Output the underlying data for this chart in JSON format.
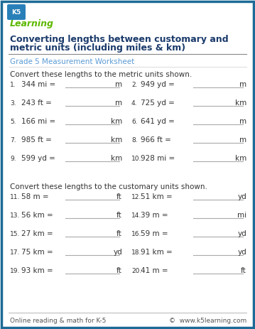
{
  "title_line1": "Converting lengths between customary and",
  "title_line2": "metric units (including miles & km)",
  "subtitle": "Grade 5 Measurement Worksheet",
  "section1_header": "Convert these lengths to the metric units shown.",
  "section2_header": "Convert these lengths to the customary units shown.",
  "problems_section1": [
    {
      "num": "1.",
      "expr": "344 mi =",
      "unit": "m"
    },
    {
      "num": "2.",
      "expr": "949 yd =",
      "unit": "m"
    },
    {
      "num": "3.",
      "expr": "243 ft =",
      "unit": "m"
    },
    {
      "num": "4.",
      "expr": "725 yd =",
      "unit": "km"
    },
    {
      "num": "5.",
      "expr": "166 mi =",
      "unit": "km"
    },
    {
      "num": "6.",
      "expr": "641 yd =",
      "unit": "m"
    },
    {
      "num": "7.",
      "expr": "985 ft =",
      "unit": "km"
    },
    {
      "num": "8.",
      "expr": "966 ft =",
      "unit": "m"
    },
    {
      "num": "9.",
      "expr": "599 yd =",
      "unit": "km"
    },
    {
      "num": "10.",
      "expr": "928 mi =",
      "unit": "km"
    }
  ],
  "problems_section2": [
    {
      "num": "11.",
      "expr": "58 m =",
      "unit": "ft"
    },
    {
      "num": "12.",
      "expr": "51 km =",
      "unit": "yd"
    },
    {
      "num": "13.",
      "expr": "56 km =",
      "unit": "ft"
    },
    {
      "num": "14.",
      "expr": "39 m =",
      "unit": "mi"
    },
    {
      "num": "15.",
      "expr": "27 km =",
      "unit": "ft"
    },
    {
      "num": "16.",
      "expr": "59 m =",
      "unit": "yd"
    },
    {
      "num": "17.",
      "expr": "75 km =",
      "unit": "yd"
    },
    {
      "num": "18.",
      "expr": "91 km =",
      "unit": "yd"
    },
    {
      "num": "19.",
      "expr": "93 km =",
      "unit": "ft"
    },
    {
      "num": "20.",
      "expr": "41 m =",
      "unit": "ft"
    }
  ],
  "footer_left": "Online reading & math for K-5",
  "footer_right": "©  www.k5learning.com",
  "border_color": "#1d6a96",
  "title_color": "#1a3a6b",
  "subtitle_color": "#5b9bd5",
  "text_color": "#333333",
  "line_color": "#aaaaaa",
  "bg_color": "#ffffff"
}
